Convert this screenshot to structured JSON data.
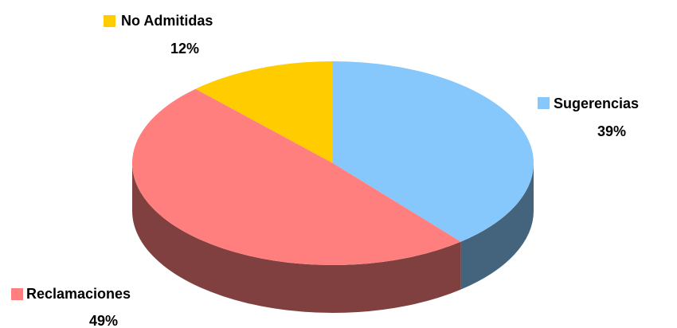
{
  "chart_data": {
    "type": "pie",
    "categories": [
      "Sugerencias",
      "Reclamaciones",
      "No Admitidas"
    ],
    "values": [
      39,
      49,
      12
    ],
    "value_labels": [
      "39%",
      "49%",
      "12%"
    ],
    "colors": [
      "#87c8fc",
      "#ff7f7f",
      "#ffcc00"
    ]
  }
}
